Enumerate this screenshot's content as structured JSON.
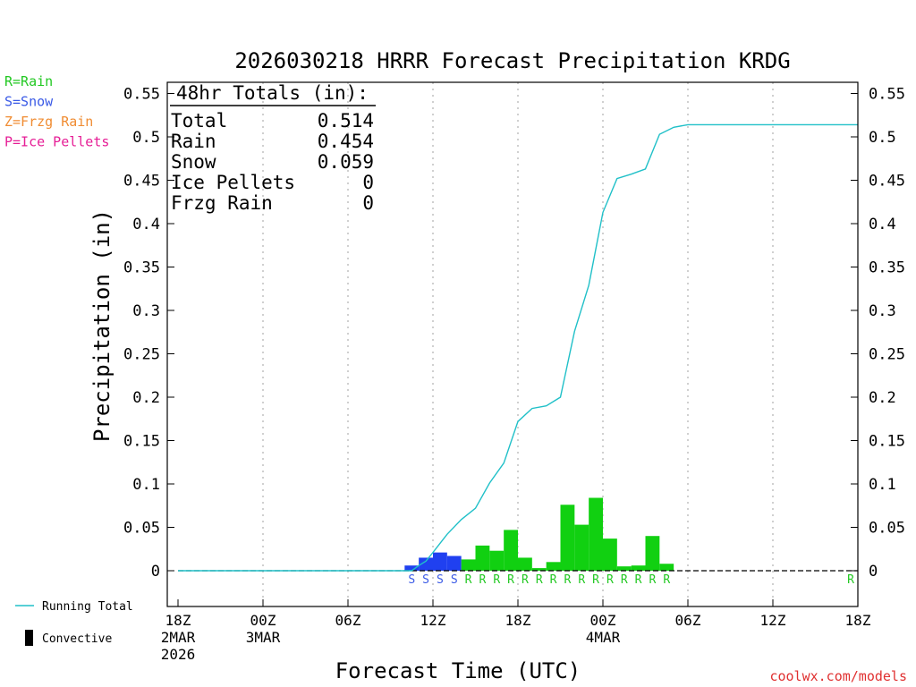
{
  "chart_data": {
    "type": "bar",
    "title": "2026030218 HRRR Forecast Precipitation KRDG",
    "xlabel": "Forecast Time (UTC)",
    "ylabel": "Precipitation (in)",
    "ylim": [
      -0.04,
      0.56
    ],
    "xlim_hours": [
      0,
      48
    ],
    "yticks": [
      0,
      0.05,
      0.1,
      0.15,
      0.2,
      0.25,
      0.3,
      0.35,
      0.4,
      0.45,
      0.5,
      0.55
    ],
    "ytick_labels": [
      "0",
      "0.05",
      "0.1",
      "0.15",
      "0.2",
      "0.25",
      "0.3",
      "0.35",
      "0.4",
      "0.45",
      "0.5",
      "0.55"
    ],
    "xticks": [
      {
        "hour": 0,
        "lines": [
          "18Z",
          "2MAR",
          "2026"
        ]
      },
      {
        "hour": 6,
        "lines": [
          "00Z",
          "3MAR"
        ]
      },
      {
        "hour": 12,
        "lines": [
          "06Z"
        ]
      },
      {
        "hour": 18,
        "lines": [
          "12Z"
        ]
      },
      {
        "hour": 24,
        "lines": [
          "18Z"
        ]
      },
      {
        "hour": 30,
        "lines": [
          "00Z",
          "4MAR"
        ]
      },
      {
        "hour": 36,
        "lines": [
          "06Z"
        ]
      },
      {
        "hour": 42,
        "lines": [
          "12Z"
        ]
      },
      {
        "hour": 48,
        "lines": [
          "18Z"
        ]
      }
    ],
    "series": [
      {
        "name": "Hourly Precipitation",
        "bars": [
          {
            "hour": 17,
            "value": 0.006,
            "ptype": "S"
          },
          {
            "hour": 18,
            "value": 0.015,
            "ptype": "S"
          },
          {
            "hour": 19,
            "value": 0.021,
            "ptype": "S"
          },
          {
            "hour": 20,
            "value": 0.017,
            "ptype": "S"
          },
          {
            "hour": 21,
            "value": 0.013,
            "ptype": "R"
          },
          {
            "hour": 22,
            "value": 0.029,
            "ptype": "R"
          },
          {
            "hour": 23,
            "value": 0.023,
            "ptype": "R"
          },
          {
            "hour": 24,
            "value": 0.047,
            "ptype": "R"
          },
          {
            "hour": 25,
            "value": 0.015,
            "ptype": "R"
          },
          {
            "hour": 26,
            "value": 0.003,
            "ptype": "R"
          },
          {
            "hour": 27,
            "value": 0.01,
            "ptype": "R"
          },
          {
            "hour": 28,
            "value": 0.076,
            "ptype": "R"
          },
          {
            "hour": 29,
            "value": 0.053,
            "ptype": "R"
          },
          {
            "hour": 30,
            "value": 0.084,
            "ptype": "R"
          },
          {
            "hour": 31,
            "value": 0.037,
            "ptype": "R"
          },
          {
            "hour": 32,
            "value": 0.005,
            "ptype": "R"
          },
          {
            "hour": 33,
            "value": 0.006,
            "ptype": "R"
          },
          {
            "hour": 34,
            "value": 0.04,
            "ptype": "R"
          },
          {
            "hour": 35,
            "value": 0.008,
            "ptype": "R"
          }
        ]
      },
      {
        "name": "Running Total",
        "points": [
          [
            0,
            0
          ],
          [
            16.5,
            0
          ],
          [
            17,
            0.006
          ],
          [
            17.5,
            0.011
          ],
          [
            18,
            0.021
          ],
          [
            19,
            0.042
          ],
          [
            20,
            0.059
          ],
          [
            21,
            0.072
          ],
          [
            22,
            0.101
          ],
          [
            23,
            0.124
          ],
          [
            24,
            0.172
          ],
          [
            25,
            0.187
          ],
          [
            26,
            0.19
          ],
          [
            27,
            0.2
          ],
          [
            28,
            0.276
          ],
          [
            29,
            0.329
          ],
          [
            30,
            0.413
          ],
          [
            31,
            0.452
          ],
          [
            32,
            0.457
          ],
          [
            33,
            0.463
          ],
          [
            34,
            0.503
          ],
          [
            35,
            0.511
          ],
          [
            36,
            0.514
          ],
          [
            48,
            0.514
          ]
        ]
      }
    ],
    "ptype_labels": [
      {
        "hour": 17,
        "text": "S",
        "color": "#3a5ae6"
      },
      {
        "hour": 18,
        "text": "S",
        "color": "#3a5ae6"
      },
      {
        "hour": 19,
        "text": "S",
        "color": "#3a5ae6"
      },
      {
        "hour": 20,
        "text": "S",
        "color": "#3a5ae6"
      },
      {
        "hour": 21,
        "text": "R",
        "color": "#22c822"
      },
      {
        "hour": 22,
        "text": "R",
        "color": "#22c822"
      },
      {
        "hour": 23,
        "text": "R",
        "color": "#22c822"
      },
      {
        "hour": 24,
        "text": "R",
        "color": "#22c822"
      },
      {
        "hour": 25,
        "text": "R",
        "color": "#22c822"
      },
      {
        "hour": 26,
        "text": "R",
        "color": "#22c822"
      },
      {
        "hour": 27,
        "text": "R",
        "color": "#22c822"
      },
      {
        "hour": 28,
        "text": "R",
        "color": "#22c822"
      },
      {
        "hour": 29,
        "text": "R",
        "color": "#22c822"
      },
      {
        "hour": 30,
        "text": "R",
        "color": "#22c822"
      },
      {
        "hour": 31,
        "text": "R",
        "color": "#22c822"
      },
      {
        "hour": 32,
        "text": "R",
        "color": "#22c822"
      },
      {
        "hour": 33,
        "text": "R",
        "color": "#22c822"
      },
      {
        "hour": 34,
        "text": "R",
        "color": "#22c822"
      },
      {
        "hour": 35,
        "text": "R",
        "color": "#22c822"
      },
      {
        "hour": 48,
        "text": "R",
        "color": "#22c822"
      }
    ]
  },
  "totals": {
    "heading": "48hr Totals (in):",
    "rows": [
      {
        "label": "Total",
        "value": "0.514"
      },
      {
        "label": "Rain",
        "value": "0.454"
      },
      {
        "label": "Snow",
        "value": "0.059"
      },
      {
        "label": "Ice Pellets",
        "value": "0"
      },
      {
        "label": "Frzg Rain",
        "value": "0"
      }
    ]
  },
  "ptype_key": [
    {
      "text": "R=Rain",
      "color": "#22c822"
    },
    {
      "text": "S=Snow",
      "color": "#3a5ae6"
    },
    {
      "text": "Z=Frzg Rain",
      "color": "#f08c32"
    },
    {
      "text": "P=Ice Pellets",
      "color": "#e61e96"
    }
  ],
  "legend": {
    "running_total": "Running Total",
    "convective": "Convective"
  },
  "credit": "coolwx.com/models",
  "colors": {
    "rain": "#11d011",
    "snow": "#2040f0",
    "running_total": "#20c0c8",
    "credit": "#e03030",
    "grid": "#a0a0a0",
    "axis": "#000000"
  }
}
